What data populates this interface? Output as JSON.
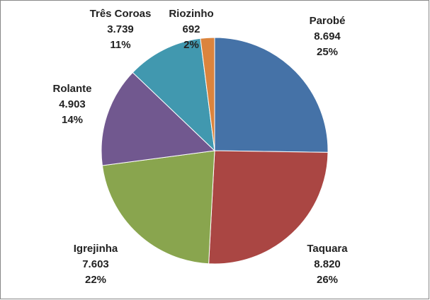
{
  "chart_data": {
    "type": "pie",
    "categories": [
      "Parobé",
      "Taquara",
      "Igrejinha",
      "Rolante",
      "Três Coroas",
      "Riozinho"
    ],
    "values": [
      8694,
      8820,
      7603,
      4903,
      3739,
      692
    ],
    "value_labels": [
      "8.694",
      "8.820",
      "7.603",
      "4.903",
      "3.739",
      "692"
    ],
    "percents": [
      25,
      26,
      22,
      14,
      11,
      2
    ],
    "percent_labels": [
      "25%",
      "26%",
      "22%",
      "14%",
      "11%",
      "2%"
    ],
    "colors": [
      "#4572a7",
      "#aa4643",
      "#89a54e",
      "#71588f",
      "#4198af",
      "#db843d"
    ]
  }
}
